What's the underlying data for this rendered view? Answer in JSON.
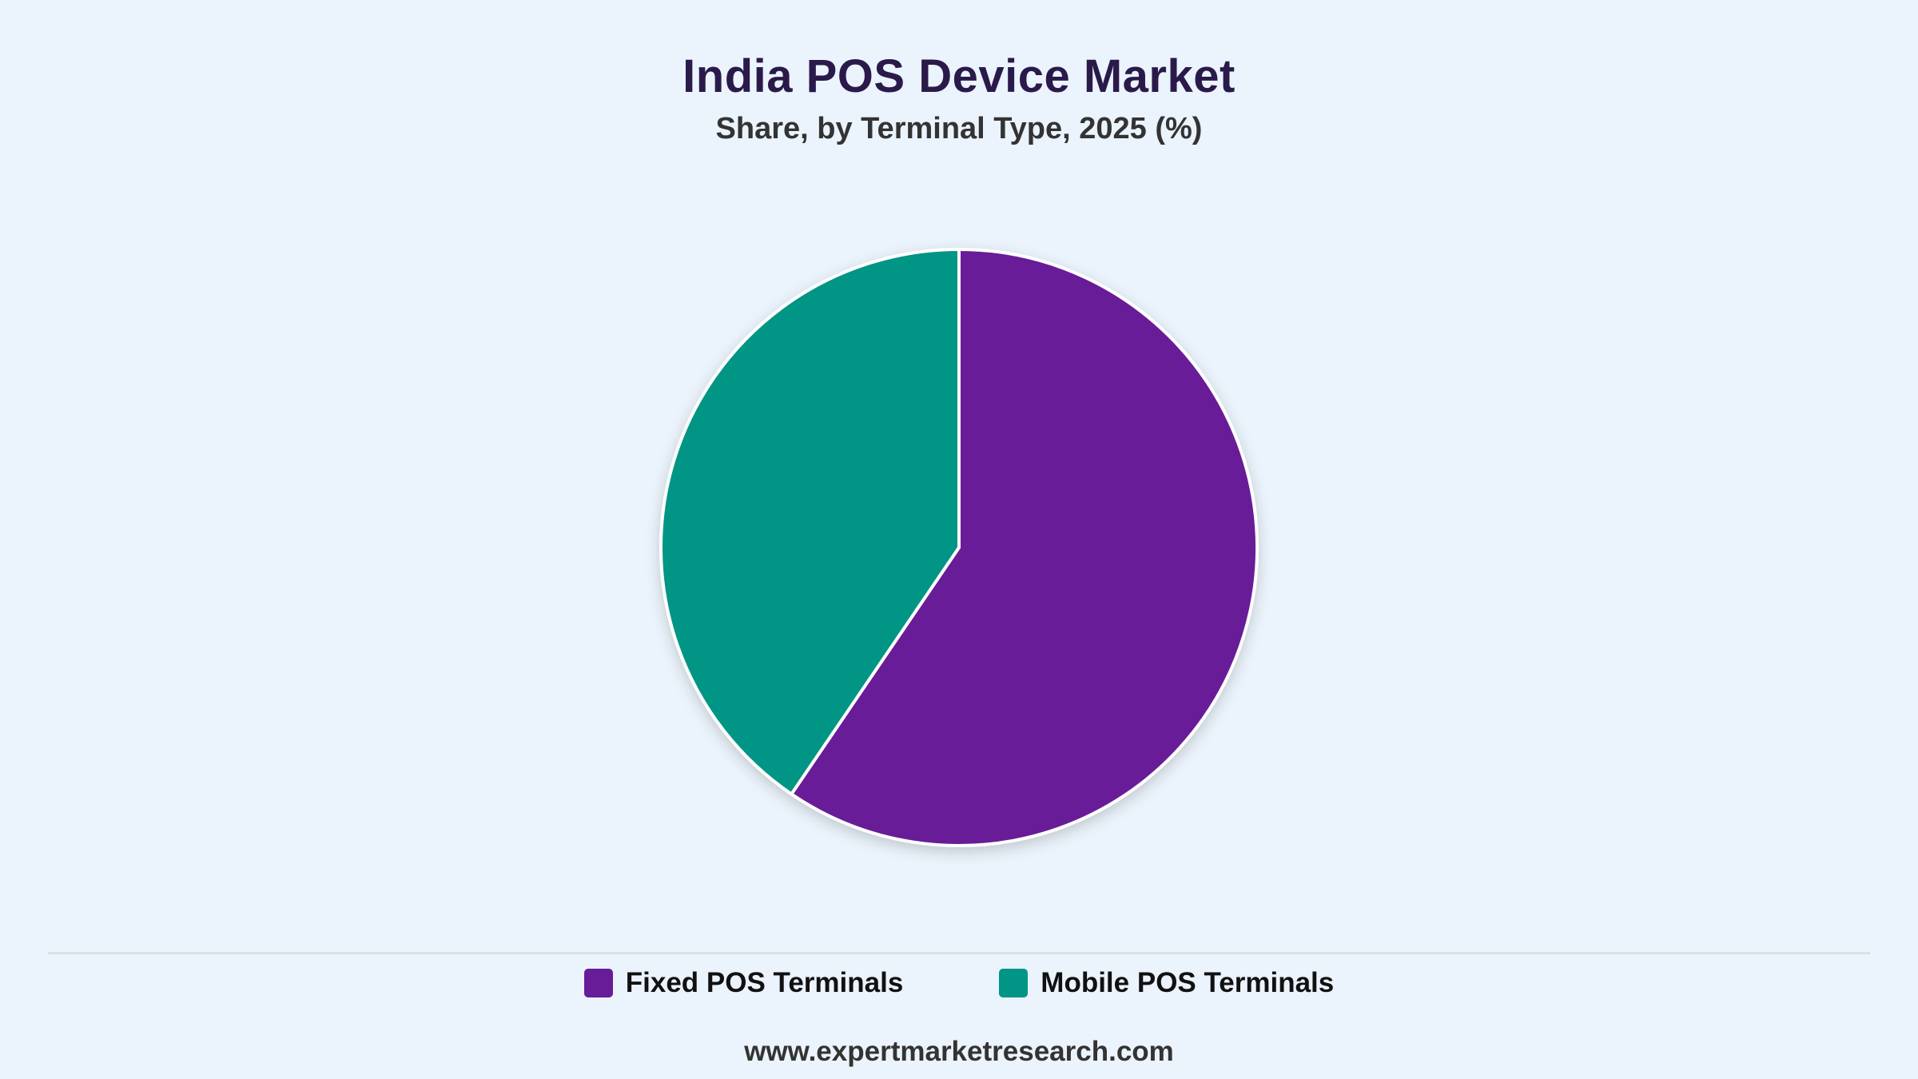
{
  "header": {
    "title": "India POS Device Market",
    "subtitle": "Share, by Terminal Type, 2025 (%)"
  },
  "chart_data": {
    "type": "pie",
    "title": "India POS Device Market",
    "subtitle": "Share, by Terminal Type, 2025 (%)",
    "categories": [
      "Fixed POS Terminals",
      "Mobile POS Terminals"
    ],
    "values": [
      59.5,
      40.5
    ],
    "colors": [
      "#671c98",
      "#009585"
    ],
    "legend": "bottom",
    "start_angle_deg": 0,
    "direction": "clockwise"
  },
  "legend": {
    "items": [
      {
        "label": "Fixed POS Terminals",
        "color": "#671c98"
      },
      {
        "label": "Mobile POS Terminals",
        "color": "#009585"
      }
    ]
  },
  "footer": {
    "source": "www.expertmarketresearch.com"
  }
}
